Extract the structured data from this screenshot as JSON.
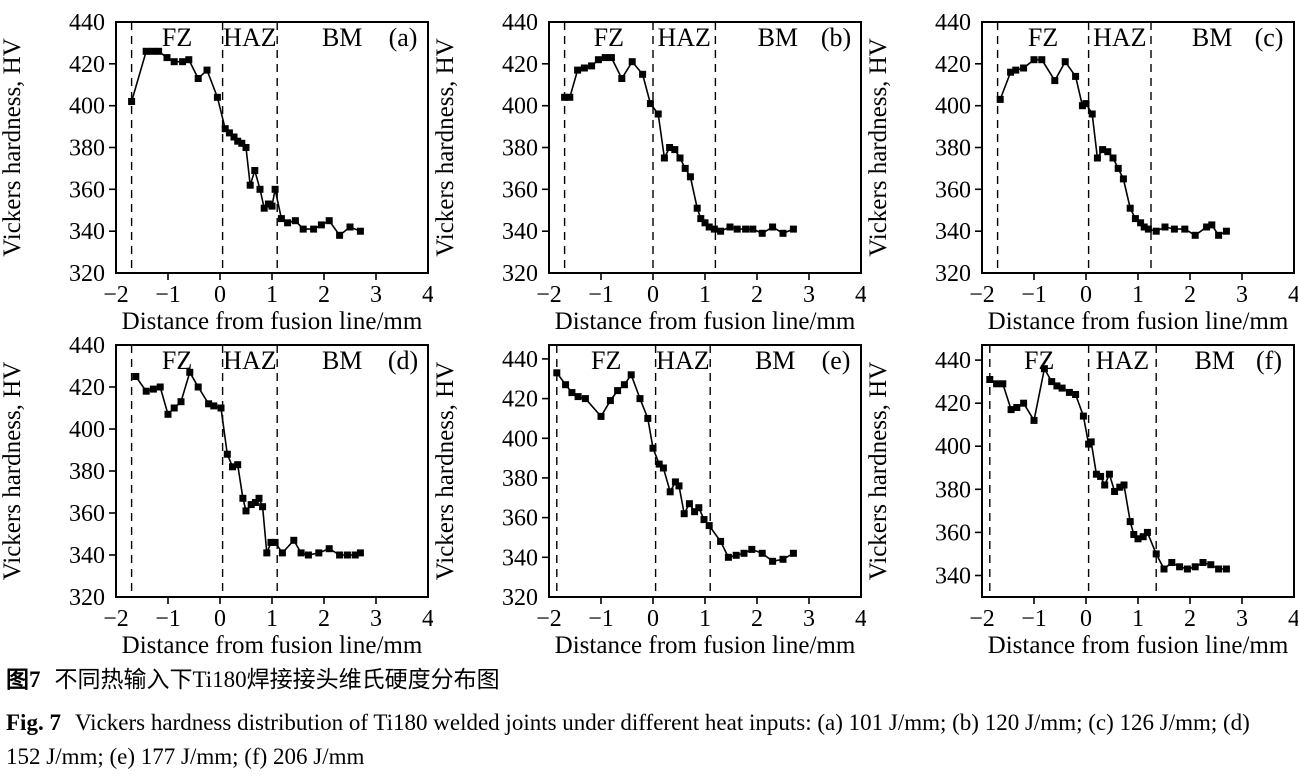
{
  "figure": {
    "caption_zh_label": "图7",
    "caption_zh_text": "不同热输入下Ti180焊接接头维氏硬度分布图",
    "caption_en_label": "Fig. 7",
    "caption_en_text": "Vickers hardness distribution of Ti180 welded joints under different heat inputs: (a) 101 J/mm; (b) 120 J/mm; (c) 126 J/mm; (d) 152 J/mm; (e) 177 J/mm; (f) 206 J/mm"
  },
  "chart_data": [
    {
      "type": "line",
      "panel": "(a)",
      "heat_input": "101 J/mm",
      "xlabel": "Distance from fusion line/mm",
      "ylabel": "Vickers hardness, HV",
      "xlim": [
        -2,
        4
      ],
      "xticks": [
        -2,
        -1,
        0,
        1,
        2,
        3,
        4
      ],
      "ylim": [
        320,
        440
      ],
      "yticks": [
        320,
        340,
        360,
        380,
        400,
        420,
        440
      ],
      "region_lines": [
        -1.7,
        0.05,
        1.1
      ],
      "regions": [
        "FZ",
        "HAZ",
        "BM"
      ],
      "marker": "square",
      "color": "#000000",
      "points": [
        [
          -1.7,
          402
        ],
        [
          -1.42,
          426
        ],
        [
          -1.3,
          426
        ],
        [
          -1.18,
          426
        ],
        [
          -1.02,
          423
        ],
        [
          -0.88,
          421
        ],
        [
          -0.72,
          421
        ],
        [
          -0.6,
          422
        ],
        [
          -0.42,
          413
        ],
        [
          -0.25,
          417
        ],
        [
          -0.05,
          404
        ],
        [
          0.1,
          389
        ],
        [
          0.18,
          387
        ],
        [
          0.27,
          385
        ],
        [
          0.34,
          383
        ],
        [
          0.42,
          382
        ],
        [
          0.5,
          380
        ],
        [
          0.58,
          362
        ],
        [
          0.67,
          369
        ],
        [
          0.77,
          360
        ],
        [
          0.85,
          351
        ],
        [
          0.93,
          353
        ],
        [
          1.0,
          352
        ],
        [
          1.06,
          360
        ],
        [
          1.18,
          346
        ],
        [
          1.3,
          344
        ],
        [
          1.45,
          345
        ],
        [
          1.6,
          341
        ],
        [
          1.8,
          341
        ],
        [
          1.95,
          343
        ],
        [
          2.1,
          345
        ],
        [
          2.3,
          338
        ],
        [
          2.5,
          342
        ],
        [
          2.7,
          340
        ]
      ]
    },
    {
      "type": "line",
      "panel": "(b)",
      "heat_input": "120 J/mm",
      "xlabel": "Distance from fusion line/mm",
      "ylabel": "Vickers hardness, HV",
      "xlim": [
        -2,
        4
      ],
      "xticks": [
        -2,
        -1,
        0,
        1,
        2,
        3,
        4
      ],
      "ylim": [
        320,
        440
      ],
      "yticks": [
        320,
        340,
        360,
        380,
        400,
        420,
        440
      ],
      "region_lines": [
        -1.7,
        0.0,
        1.2
      ],
      "regions": [
        "FZ",
        "HAZ",
        "BM"
      ],
      "marker": "square",
      "color": "#000000",
      "points": [
        [
          -1.7,
          404
        ],
        [
          -1.6,
          404
        ],
        [
          -1.45,
          417
        ],
        [
          -1.32,
          418
        ],
        [
          -1.18,
          419
        ],
        [
          -1.05,
          422
        ],
        [
          -0.92,
          423
        ],
        [
          -0.8,
          423
        ],
        [
          -0.6,
          413
        ],
        [
          -0.4,
          421
        ],
        [
          -0.2,
          415
        ],
        [
          -0.05,
          401
        ],
        [
          0.1,
          396
        ],
        [
          0.22,
          375
        ],
        [
          0.32,
          380
        ],
        [
          0.42,
          379
        ],
        [
          0.52,
          375
        ],
        [
          0.62,
          370
        ],
        [
          0.72,
          366
        ],
        [
          0.85,
          351
        ],
        [
          0.92,
          346
        ],
        [
          1.0,
          344
        ],
        [
          1.08,
          342
        ],
        [
          1.18,
          341
        ],
        [
          1.3,
          340
        ],
        [
          1.48,
          342
        ],
        [
          1.62,
          341
        ],
        [
          1.78,
          341
        ],
        [
          1.92,
          341
        ],
        [
          2.1,
          339
        ],
        [
          2.3,
          342
        ],
        [
          2.5,
          339
        ],
        [
          2.7,
          341
        ]
      ]
    },
    {
      "type": "line",
      "panel": "(c)",
      "heat_input": "126 J/mm",
      "xlabel": "Distance from fusion line/mm",
      "ylabel": "Vickers hardness, HV",
      "xlim": [
        -2,
        4
      ],
      "xticks": [
        -2,
        -1,
        0,
        1,
        2,
        3,
        4
      ],
      "ylim": [
        320,
        440
      ],
      "yticks": [
        320,
        340,
        360,
        380,
        400,
        420,
        440
      ],
      "region_lines": [
        -1.7,
        0.05,
        1.25
      ],
      "regions": [
        "FZ",
        "HAZ",
        "BM"
      ],
      "marker": "square",
      "color": "#000000",
      "points": [
        [
          -1.65,
          403
        ],
        [
          -1.45,
          416
        ],
        [
          -1.35,
          417
        ],
        [
          -1.2,
          418
        ],
        [
          -1.0,
          422
        ],
        [
          -0.85,
          422
        ],
        [
          -0.6,
          412
        ],
        [
          -0.4,
          421
        ],
        [
          -0.2,
          414
        ],
        [
          -0.07,
          400
        ],
        [
          0.0,
          401
        ],
        [
          0.12,
          396
        ],
        [
          0.22,
          375
        ],
        [
          0.32,
          379
        ],
        [
          0.42,
          378
        ],
        [
          0.52,
          375
        ],
        [
          0.62,
          370
        ],
        [
          0.72,
          365
        ],
        [
          0.85,
          351
        ],
        [
          0.95,
          346
        ],
        [
          1.05,
          344
        ],
        [
          1.12,
          342
        ],
        [
          1.2,
          341
        ],
        [
          1.35,
          340
        ],
        [
          1.52,
          342
        ],
        [
          1.7,
          341
        ],
        [
          1.9,
          341
        ],
        [
          2.1,
          338
        ],
        [
          2.32,
          342
        ],
        [
          2.42,
          343
        ],
        [
          2.55,
          338
        ],
        [
          2.7,
          340
        ]
      ]
    },
    {
      "type": "line",
      "panel": "(d)",
      "heat_input": "152 J/mm",
      "xlabel": "Distance from fusion line/mm",
      "ylabel": "Vickers hardness, HV",
      "xlim": [
        -2,
        4
      ],
      "xticks": [
        -2,
        -1,
        0,
        1,
        2,
        3,
        4
      ],
      "ylim": [
        320,
        440
      ],
      "yticks": [
        320,
        340,
        360,
        380,
        400,
        420,
        440
      ],
      "region_lines": [
        -1.7,
        0.05,
        1.1
      ],
      "regions": [
        "FZ",
        "HAZ",
        "BM"
      ],
      "marker": "square",
      "color": "#000000",
      "points": [
        [
          -1.62,
          425
        ],
        [
          -1.42,
          418
        ],
        [
          -1.28,
          419
        ],
        [
          -1.15,
          420
        ],
        [
          -1.0,
          407
        ],
        [
          -0.88,
          410
        ],
        [
          -0.75,
          413
        ],
        [
          -0.58,
          427
        ],
        [
          -0.42,
          420
        ],
        [
          -0.22,
          412
        ],
        [
          -0.12,
          411
        ],
        [
          0.02,
          410
        ],
        [
          0.14,
          388
        ],
        [
          0.24,
          382
        ],
        [
          0.34,
          383
        ],
        [
          0.44,
          367
        ],
        [
          0.5,
          361
        ],
        [
          0.6,
          364
        ],
        [
          0.68,
          365
        ],
        [
          0.75,
          367
        ],
        [
          0.82,
          363
        ],
        [
          0.9,
          341
        ],
        [
          0.98,
          346
        ],
        [
          1.06,
          346
        ],
        [
          1.2,
          341
        ],
        [
          1.42,
          347
        ],
        [
          1.56,
          341
        ],
        [
          1.7,
          340
        ],
        [
          1.9,
          341
        ],
        [
          2.1,
          343
        ],
        [
          2.3,
          340
        ],
        [
          2.45,
          340
        ],
        [
          2.6,
          340
        ],
        [
          2.7,
          341
        ]
      ]
    },
    {
      "type": "line",
      "panel": "(e)",
      "heat_input": "177 J/mm",
      "xlabel": "Distance from fusion line/mm",
      "ylabel": "Vickers hardness, HV",
      "xlim": [
        -2,
        4
      ],
      "xticks": [
        -2,
        -1,
        0,
        1,
        2,
        3,
        4
      ],
      "ylim": [
        320,
        447
      ],
      "yticks": [
        320,
        340,
        360,
        380,
        400,
        420,
        440
      ],
      "region_lines": [
        -1.85,
        0.05,
        1.1
      ],
      "regions": [
        "FZ",
        "HAZ",
        "BM"
      ],
      "marker": "square",
      "color": "#000000",
      "points": [
        [
          -1.85,
          433
        ],
        [
          -1.68,
          427
        ],
        [
          -1.56,
          423
        ],
        [
          -1.44,
          421
        ],
        [
          -1.3,
          420
        ],
        [
          -1.0,
          411
        ],
        [
          -0.82,
          419
        ],
        [
          -0.68,
          424
        ],
        [
          -0.55,
          427
        ],
        [
          -0.42,
          432
        ],
        [
          -0.25,
          420
        ],
        [
          -0.1,
          410
        ],
        [
          0.0,
          395
        ],
        [
          0.12,
          387
        ],
        [
          0.2,
          385
        ],
        [
          0.33,
          373
        ],
        [
          0.43,
          378
        ],
        [
          0.5,
          376
        ],
        [
          0.6,
          362
        ],
        [
          0.7,
          367
        ],
        [
          0.8,
          363
        ],
        [
          0.88,
          365
        ],
        [
          0.98,
          359
        ],
        [
          1.08,
          356
        ],
        [
          1.3,
          348
        ],
        [
          1.45,
          340
        ],
        [
          1.6,
          341
        ],
        [
          1.75,
          342
        ],
        [
          1.9,
          344
        ],
        [
          2.1,
          342
        ],
        [
          2.3,
          338
        ],
        [
          2.5,
          339
        ],
        [
          2.7,
          342
        ]
      ]
    },
    {
      "type": "line",
      "panel": "(f)",
      "heat_input": "206 J/mm",
      "xlabel": "Distance from fusion line/mm",
      "ylabel": "Vickers hardness, HV",
      "xlim": [
        -2,
        4
      ],
      "xticks": [
        -2,
        -1,
        0,
        1,
        2,
        3,
        4
      ],
      "ylim": [
        330,
        447
      ],
      "yticks": [
        340,
        360,
        380,
        400,
        420,
        440
      ],
      "region_lines": [
        -1.85,
        0.05,
        1.35
      ],
      "regions": [
        "FZ",
        "HAZ",
        "BM"
      ],
      "marker": "square",
      "color": "#000000",
      "points": [
        [
          -1.85,
          431
        ],
        [
          -1.72,
          429
        ],
        [
          -1.6,
          429
        ],
        [
          -1.44,
          417
        ],
        [
          -1.33,
          418
        ],
        [
          -1.2,
          420
        ],
        [
          -1.0,
          412
        ],
        [
          -0.8,
          436
        ],
        [
          -0.66,
          430
        ],
        [
          -0.56,
          428
        ],
        [
          -0.46,
          427
        ],
        [
          -0.32,
          425
        ],
        [
          -0.2,
          424
        ],
        [
          -0.05,
          414
        ],
        [
          0.05,
          401
        ],
        [
          0.1,
          402
        ],
        [
          0.2,
          387
        ],
        [
          0.28,
          386
        ],
        [
          0.36,
          382
        ],
        [
          0.45,
          387
        ],
        [
          0.55,
          379
        ],
        [
          0.65,
          381
        ],
        [
          0.73,
          382
        ],
        [
          0.85,
          365
        ],
        [
          0.92,
          359
        ],
        [
          1.0,
          357
        ],
        [
          1.1,
          358
        ],
        [
          1.18,
          360
        ],
        [
          1.35,
          350
        ],
        [
          1.5,
          343
        ],
        [
          1.65,
          346
        ],
        [
          1.8,
          344
        ],
        [
          1.95,
          343
        ],
        [
          2.1,
          344
        ],
        [
          2.25,
          346
        ],
        [
          2.4,
          345
        ],
        [
          2.55,
          343
        ],
        [
          2.7,
          343
        ]
      ]
    }
  ]
}
